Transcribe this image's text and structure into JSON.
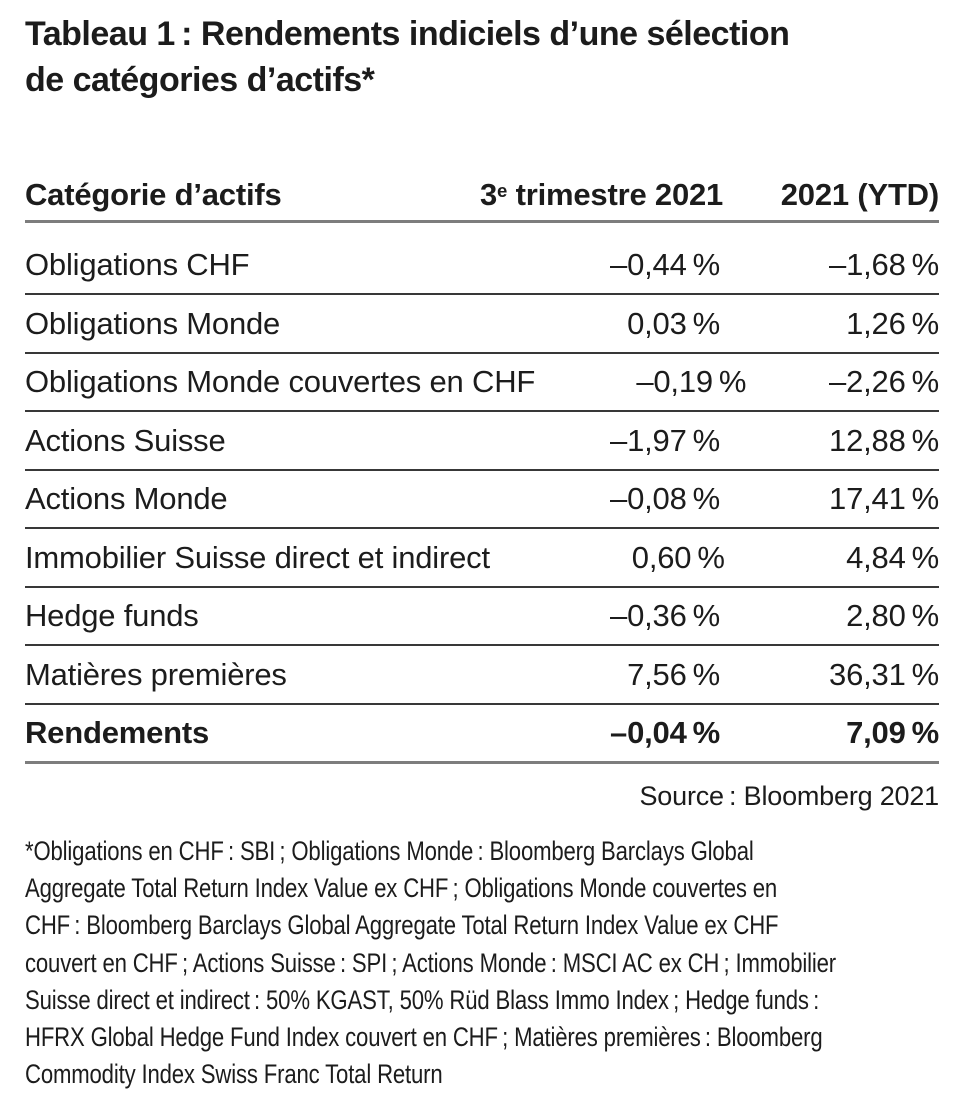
{
  "title": {
    "line1": "Tableau 1 : Rendements indiciels d’une sélection",
    "line2": "de catégories d’actifs*"
  },
  "table": {
    "header": {
      "category": "Catégorie d’actifs",
      "q3_prefix": "3",
      "q3_sup": "e",
      "q3_rest": " trimestre 2021",
      "ytd": "2021 (YTD)"
    },
    "rows": [
      {
        "label": "Obligations CHF",
        "q3": "–0,44 %",
        "ytd": "–1,68 %"
      },
      {
        "label": "Obligations Monde",
        "q3": "0,03 %",
        "ytd": "1,26 %"
      },
      {
        "label": "Obligations Monde couvertes en CHF",
        "q3": "–0,19 %",
        "ytd": "–2,26 %"
      },
      {
        "label": "Actions Suisse",
        "q3": "–1,97 %",
        "ytd": "12,88 %"
      },
      {
        "label": "Actions Monde",
        "q3": "–0,08 %",
        "ytd": "17,41 %"
      },
      {
        "label": "Immobilier Suisse direct et indirect",
        "q3": "0,60 %",
        "ytd": "4,84 %"
      },
      {
        "label": "Hedge funds",
        "q3": "–0,36 %",
        "ytd": "2,80 %"
      },
      {
        "label": "Matières premières",
        "q3": "7,56 %",
        "ytd": "36,31 %"
      },
      {
        "label": "Rendements",
        "q3": "–0,04 %",
        "ytd": "7,09 %"
      }
    ]
  },
  "source": "Source : Bloomberg 2021",
  "footnote": {
    "lines": [
      "*Obligations en CHF : SBI ; Obligations Monde : Bloomberg Barclays Global",
      "Aggregate Total Return Index Value ex CHF ; Obligations Monde couvertes en",
      "CHF : Bloomberg Barclays Global Aggregate Total Return Index Value ex CHF",
      "couvert en CHF ; Actions Suisse : SPI ; Actions Monde : MSCI AC ex CH ; Immobilier",
      "Suisse direct et indirect : 50% KGAST, 50% Rüd Blass Immo Index ; Hedge funds :",
      "HFRX Global Hedge Fund Index couvert en CHF ; Matières premières : Bloomberg",
      "Commodity Index Swiss Franc Total Return"
    ]
  },
  "colors": {
    "text": "#1c1c1c",
    "outer_rule": "#7d7d7d",
    "inner_rule": "#383838",
    "background": "#ffffff"
  }
}
